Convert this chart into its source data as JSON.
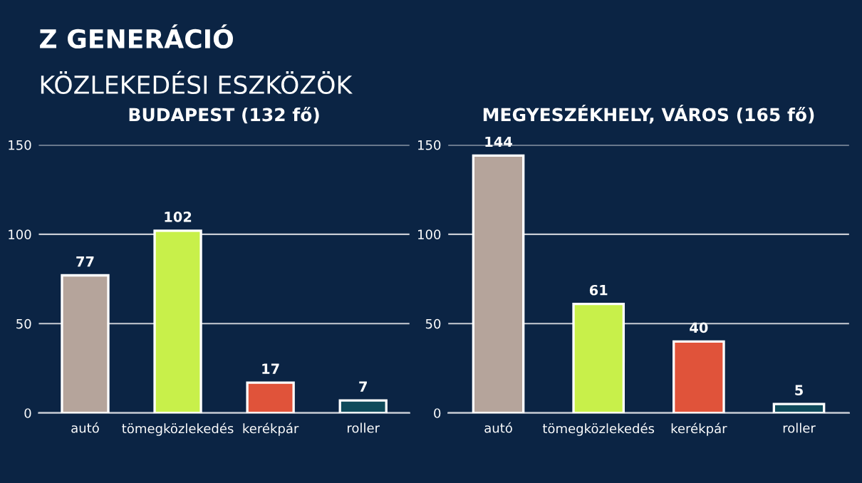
{
  "chart_data": [
    {
      "type": "bar",
      "title": "BUDAPEST (132 fő)",
      "annotations": [
        "Z GENERÁCIÓ",
        "KÖZLEKEDÉSI ESZKÖZÖK"
      ],
      "categories": [
        "autó",
        "tömegközlekedés",
        "kerékpár",
        "roller"
      ],
      "values": [
        77,
        102,
        17,
        7
      ],
      "colors": [
        "#b5a49b",
        "#c8f04a",
        "#e0533a",
        "#0f4a5a"
      ],
      "ylim": [
        0,
        150
      ],
      "yticks": [
        0,
        50,
        100,
        150
      ],
      "grid": "y",
      "data_labels": true
    },
    {
      "type": "bar",
      "title": "MEGYESZÉKHELY, VÁROS (165 fő)",
      "categories": [
        "autó",
        "tömegközlekedés",
        "kerékpár",
        "roller"
      ],
      "values": [
        144,
        61,
        40,
        5
      ],
      "colors": [
        "#b5a49b",
        "#c8f04a",
        "#e0533a",
        "#0f4a5a"
      ],
      "ylim": [
        0,
        150
      ],
      "yticks": [
        0,
        50,
        100,
        150
      ],
      "grid": "y",
      "data_labels": true
    }
  ]
}
